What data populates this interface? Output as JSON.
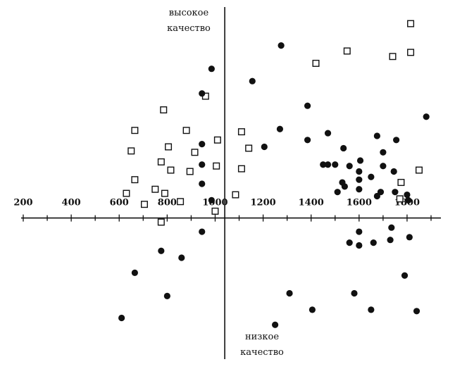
{
  "chart_data": {
    "type": "scatter",
    "title": "",
    "xlabel": "",
    "ylabel": "",
    "x_ticks": [
      200,
      400,
      600,
      800,
      1000,
      1200,
      1400,
      1600,
      1800
    ],
    "xlim": [
      200,
      1900
    ],
    "ylim": [
      -10,
      15
    ],
    "y_axis_at_x": 1040,
    "grid": false,
    "legend": "none",
    "annotations": {
      "top": "высокое\nкачество",
      "bottom": "низкое\nкачество"
    },
    "series": [
      {
        "marker": "square-open",
        "points": [
          [
            1815,
            14.2
          ],
          [
            1815,
            12.1
          ],
          [
            1740,
            11.8
          ],
          [
            1550,
            12.2
          ],
          [
            1420,
            11.3
          ],
          [
            1850,
            3.5
          ],
          [
            1775,
            2.6
          ],
          [
            1770,
            1.4
          ],
          [
            1110,
            6.3
          ],
          [
            1140,
            5.1
          ],
          [
            1085,
            1.7
          ],
          [
            1110,
            3.6
          ],
          [
            1010,
            5.7
          ],
          [
            1005,
            3.8
          ],
          [
            1000,
            0.5
          ],
          [
            960,
            8.9
          ],
          [
            880,
            6.4
          ],
          [
            915,
            4.8
          ],
          [
            895,
            3.4
          ],
          [
            855,
            1.2
          ],
          [
            805,
            5.2
          ],
          [
            815,
            3.5
          ],
          [
            785,
            7.9
          ],
          [
            775,
            4.1
          ],
          [
            790,
            1.8
          ],
          [
            750,
            2.1
          ],
          [
            705,
            1.0
          ],
          [
            665,
            6.4
          ],
          [
            650,
            4.9
          ],
          [
            665,
            2.8
          ],
          [
            630,
            1.8
          ],
          [
            775,
            -0.3
          ]
        ]
      },
      {
        "marker": "filled-circle",
        "points": [
          [
            1275,
            12.6
          ],
          [
            985,
            10.9
          ],
          [
            945,
            9.1
          ],
          [
            1155,
            10.0
          ],
          [
            1385,
            8.2
          ],
          [
            1270,
            6.5
          ],
          [
            1205,
            5.2
          ],
          [
            1385,
            5.7
          ],
          [
            1470,
            6.2
          ],
          [
            1535,
            5.1
          ],
          [
            1500,
            3.9
          ],
          [
            1560,
            3.8
          ],
          [
            1605,
            4.2
          ],
          [
            1675,
            6.0
          ],
          [
            1700,
            4.8
          ],
          [
            1755,
            5.7
          ],
          [
            1880,
            7.4
          ],
          [
            1600,
            3.4
          ],
          [
            1650,
            3.0
          ],
          [
            1700,
            3.8
          ],
          [
            1745,
            3.4
          ],
          [
            1600,
            2.8
          ],
          [
            1530,
            2.6
          ],
          [
            1600,
            2.1
          ],
          [
            1690,
            1.9
          ],
          [
            1750,
            1.9
          ],
          [
            1800,
            1.7
          ],
          [
            1510,
            1.9
          ],
          [
            1540,
            2.3
          ],
          [
            1675,
            1.6
          ],
          [
            1805,
            1.3
          ],
          [
            1470,
            3.9
          ],
          [
            1450,
            3.9
          ],
          [
            945,
            5.4
          ],
          [
            945,
            3.9
          ],
          [
            945,
            2.5
          ],
          [
            985,
            1.3
          ],
          [
            945,
            -1.0
          ],
          [
            775,
            -2.4
          ],
          [
            860,
            -2.9
          ],
          [
            665,
            -4.0
          ],
          [
            800,
            -5.7
          ],
          [
            610,
            -7.3
          ],
          [
            1310,
            -5.5
          ],
          [
            1405,
            -6.7
          ],
          [
            1250,
            -7.8
          ],
          [
            1580,
            -5.5
          ],
          [
            1650,
            -6.7
          ],
          [
            1600,
            -2.0
          ],
          [
            1660,
            -1.8
          ],
          [
            1560,
            -1.8
          ],
          [
            1600,
            -1.0
          ],
          [
            1730,
            -1.6
          ],
          [
            1735,
            -0.7
          ],
          [
            1810,
            -1.4
          ],
          [
            1790,
            -4.2
          ],
          [
            1840,
            -6.8
          ]
        ]
      }
    ]
  }
}
